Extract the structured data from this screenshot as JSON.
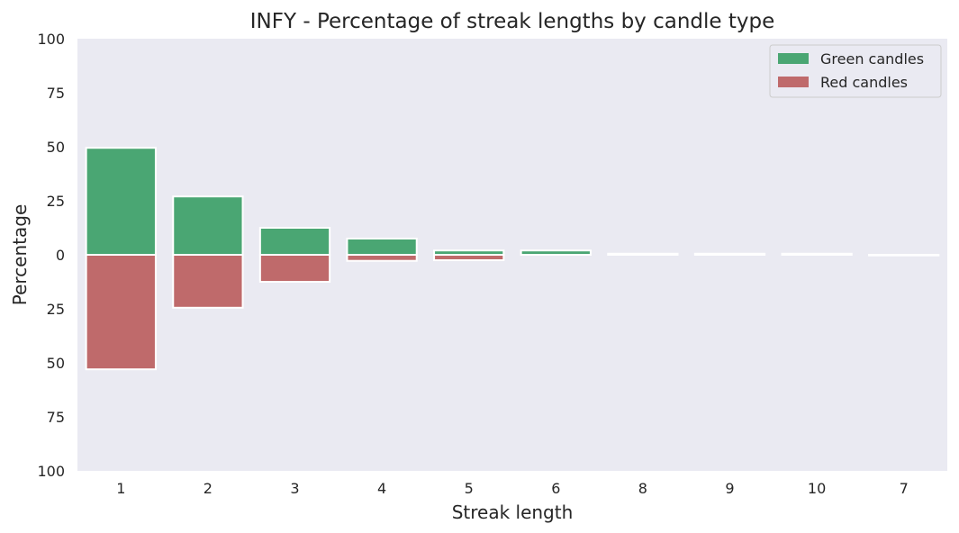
{
  "chart_data": {
    "type": "bar",
    "title": "INFY - Percentage of streak lengths by candle type",
    "xlabel": "Streak length",
    "ylabel": "Percentage",
    "categories": [
      "1",
      "2",
      "3",
      "4",
      "5",
      "6",
      "8",
      "9",
      "10",
      "7"
    ],
    "series": [
      {
        "name": "Green candles",
        "color": "#4aa673",
        "direction": "up",
        "values": [
          49.5,
          27,
          12.5,
          7.5,
          2,
          2,
          0.5,
          0.5,
          0.5,
          0
        ]
      },
      {
        "name": "Red candles",
        "color": "#bf6a6b",
        "direction": "down",
        "values": [
          53,
          24.5,
          12.5,
          2.8,
          2.5,
          0,
          0,
          0,
          0,
          0.3
        ]
      }
    ],
    "ylim": [
      -100,
      100
    ],
    "yticks": [
      "100",
      "75",
      "50",
      "25",
      "0",
      "25",
      "50",
      "75",
      "100"
    ],
    "grid": false,
    "legend_position": "top-right",
    "background_color": "#eaeaf2"
  }
}
